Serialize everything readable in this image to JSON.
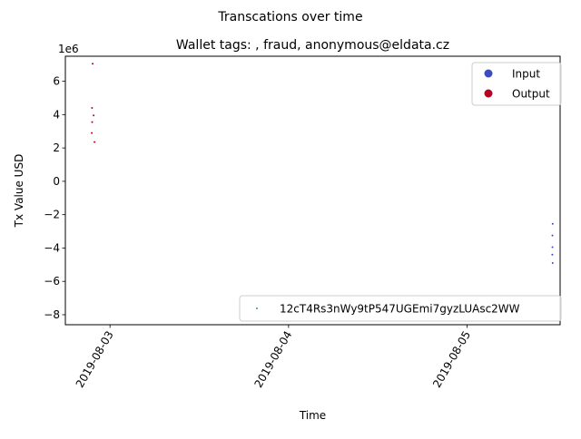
{
  "chart_data": {
    "type": "scatter",
    "suptitle": "Transcations over time",
    "title": "Wallet tags: , fraud, anonymous@eldata.cz",
    "xlabel": "Time",
    "ylabel": "Tx Value USD",
    "y_offset_label": "1e6",
    "y_scale_factor": 1000000,
    "xlim": [
      "2019-08-02T18:00",
      "2019-08-05T12:30"
    ],
    "ylim": [
      -8600000,
      7500000
    ],
    "x_ticks": [
      "2019-08-03",
      "2019-08-04",
      "2019-08-05"
    ],
    "y_ticks": [
      -8,
      -6,
      -4,
      -2,
      0,
      2,
      4,
      6
    ],
    "grid": false,
    "color_legend": {
      "placement": "top-right",
      "entries": [
        {
          "label": "Input",
          "color": "#3b4cc0"
        },
        {
          "label": "Output",
          "color": "#b40426"
        }
      ]
    },
    "address_legend": {
      "placement": "bottom-right",
      "label": "12cT4Rs3nWy9tP547UGEmi7gyzLUAsc2WW",
      "color": "#1f9e89"
    },
    "series": [
      {
        "name": "Output",
        "color": "#b40426",
        "points": [
          {
            "x": "2019-08-02T21:40",
            "y": 7050000
          },
          {
            "x": "2019-08-02T21:35",
            "y": 4400000
          },
          {
            "x": "2019-08-02T21:48",
            "y": 3950000
          },
          {
            "x": "2019-08-02T21:36",
            "y": 3550000
          },
          {
            "x": "2019-08-02T21:33",
            "y": 2900000
          },
          {
            "x": "2019-08-02T21:55",
            "y": 2350000
          }
        ]
      },
      {
        "name": "Input",
        "color": "#3b4cc0",
        "points": [
          {
            "x": "2019-08-05T11:30",
            "y": -2550000
          },
          {
            "x": "2019-08-05T11:28",
            "y": -3250000
          },
          {
            "x": "2019-08-05T11:28",
            "y": -3950000
          },
          {
            "x": "2019-08-05T11:27",
            "y": -4400000
          },
          {
            "x": "2019-08-05T11:30",
            "y": -4900000
          }
        ]
      }
    ]
  }
}
